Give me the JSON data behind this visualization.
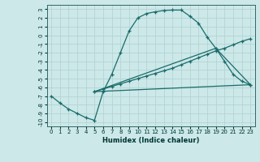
{
  "xlabel": "Humidex (Indice chaleur)",
  "bg_color": "#cce8e8",
  "grid_color": "#b0d0d0",
  "line_color": "#1a6b6b",
  "xlim": [
    -0.5,
    23.5
  ],
  "ylim": [
    -10.5,
    3.5
  ],
  "xticks": [
    0,
    1,
    2,
    3,
    4,
    5,
    6,
    7,
    8,
    9,
    10,
    11,
    12,
    13,
    14,
    15,
    16,
    17,
    18,
    19,
    20,
    21,
    22,
    23
  ],
  "yticks": [
    3,
    2,
    1,
    0,
    -1,
    -2,
    -3,
    -4,
    -5,
    -6,
    -7,
    -8,
    -9,
    -10
  ],
  "line1_x": [
    0,
    1,
    2,
    3,
    4,
    5,
    6,
    7,
    8,
    9,
    10,
    11,
    12,
    13,
    14,
    15,
    16,
    17,
    18,
    19,
    20,
    21,
    22,
    23
  ],
  "line1_y": [
    -7.0,
    -7.8,
    -8.5,
    -9.0,
    -9.5,
    -9.8,
    -6.5,
    -4.5,
    -2.0,
    0.5,
    2.0,
    2.5,
    2.7,
    2.85,
    2.9,
    2.9,
    2.2,
    1.4,
    -0.2,
    -1.5,
    -3.0,
    -4.5,
    -5.3,
    -5.7
  ],
  "line2_x": [
    5,
    6,
    7,
    8,
    9,
    10,
    11,
    12,
    13,
    14,
    15,
    16,
    17,
    18,
    19,
    20,
    21,
    22,
    23
  ],
  "line2_y": [
    -6.5,
    -6.2,
    -5.9,
    -5.6,
    -5.3,
    -5.0,
    -4.7,
    -4.4,
    -4.1,
    -3.8,
    -3.4,
    -3.0,
    -2.6,
    -2.2,
    -1.8,
    -1.5,
    -1.1,
    -0.7,
    -0.4
  ],
  "line3_x": [
    5,
    23
  ],
  "line3_y": [
    -6.5,
    -5.7
  ],
  "line4_x": [
    5,
    19,
    23
  ],
  "line4_y": [
    -6.5,
    -1.5,
    -5.7
  ]
}
